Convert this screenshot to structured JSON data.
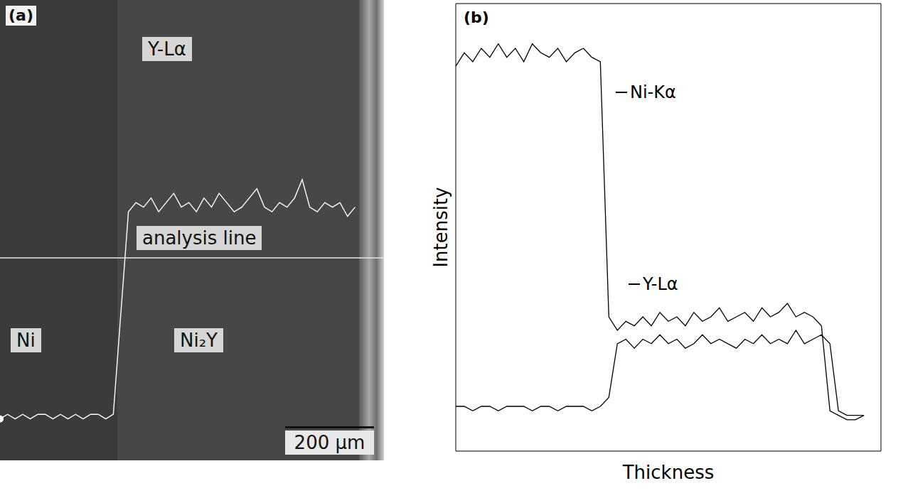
{
  "chart_data": [
    {
      "type": "line",
      "title": "(a)",
      "x": [
        0,
        17,
        34,
        51,
        68,
        85,
        102,
        119,
        136,
        153,
        170,
        187,
        204,
        221,
        238,
        255,
        272,
        289,
        306,
        323,
        340,
        357,
        374,
        391,
        408,
        425,
        442,
        459,
        476,
        493,
        510,
        527,
        544,
        561,
        578,
        595,
        612,
        629,
        646,
        663,
        680,
        697,
        714,
        731,
        748,
        765,
        782,
        799
      ],
      "series": [
        {
          "name": "Y-Lα",
          "color": "#ffffff",
          "values": [
            9,
            10,
            9,
            10,
            9,
            10,
            10,
            9,
            10,
            9,
            10,
            9,
            10,
            10,
            9,
            10,
            32,
            54,
            56,
            55,
            57,
            54,
            56,
            58,
            55,
            56,
            54,
            57,
            55,
            58,
            56,
            54,
            55,
            57,
            59,
            55,
            54,
            56,
            55,
            57,
            61,
            55,
            54,
            56,
            55,
            56,
            53,
            55
          ]
        }
      ],
      "xlim": [
        0,
        864
      ],
      "ylim": [
        0,
        100
      ],
      "tick_labels": false,
      "analysis_line": {
        "label": "analysis line",
        "y": 44
      },
      "annotations": [
        "Ni",
        "Ni₂Y"
      ],
      "scale_bar": {
        "label": "200 μm",
        "length": 200
      }
    },
    {
      "type": "line",
      "title": "(b)",
      "x_label": "Thickness",
      "y_label": "Intensity",
      "x": [
        0,
        2,
        4,
        6,
        8,
        10,
        12,
        14,
        16,
        18,
        20,
        22,
        24,
        26,
        28,
        30,
        32,
        34,
        36,
        38,
        40,
        42,
        44,
        46,
        48,
        50,
        52,
        54,
        56,
        58,
        60,
        62,
        64,
        66,
        68,
        70,
        72,
        74,
        76,
        78,
        80,
        82,
        84,
        86,
        88,
        90,
        92,
        94,
        96
      ],
      "series": [
        {
          "name": "Ni-Kα",
          "color": "#000000",
          "values": [
            86,
            89,
            87,
            90,
            88,
            91,
            88,
            90,
            87,
            91,
            89,
            88,
            90,
            87,
            89,
            90,
            88,
            87,
            30,
            27,
            29,
            28,
            30,
            28,
            31,
            29,
            30,
            28,
            31,
            29,
            30,
            32,
            29,
            30,
            31,
            29,
            32,
            30,
            31,
            33,
            30,
            31,
            30,
            28,
            9,
            8,
            7,
            7,
            8
          ]
        },
        {
          "name": "Y-Lα",
          "color": "#000000",
          "values": [
            10,
            10,
            9,
            10,
            10,
            9,
            10,
            10,
            10,
            9,
            10,
            10,
            9,
            10,
            10,
            10,
            9,
            10,
            12,
            24,
            25,
            23,
            25,
            24,
            26,
            24,
            25,
            23,
            24,
            26,
            24,
            25,
            24,
            23,
            25,
            24,
            26,
            24,
            25,
            24,
            27,
            24,
            25,
            26,
            24,
            9,
            8,
            8,
            8
          ]
        }
      ],
      "xlim": [
        0,
        100
      ],
      "ylim": [
        0,
        100
      ],
      "tick_labels": false
    }
  ]
}
